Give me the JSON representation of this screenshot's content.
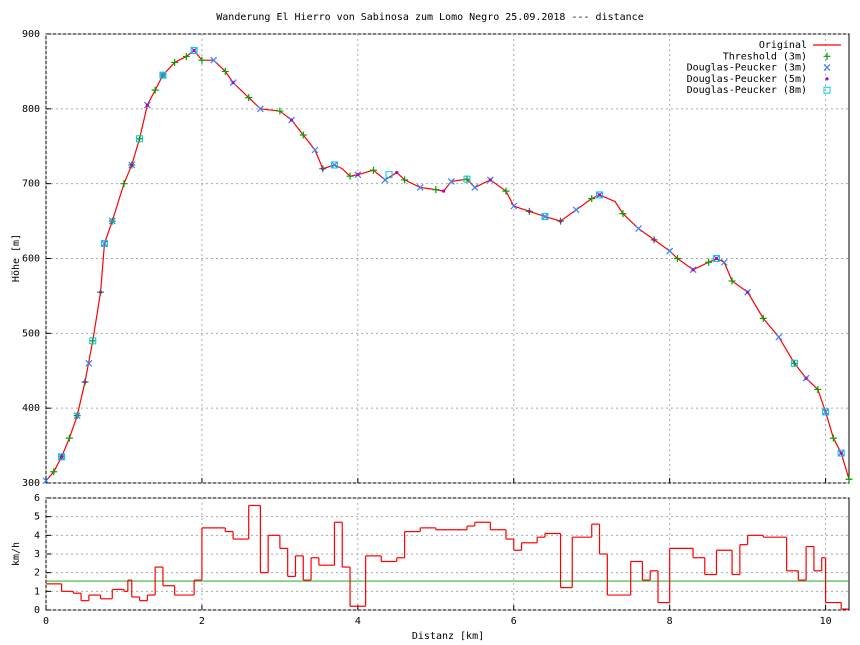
{
  "chart_data": [
    {
      "type": "line",
      "title": "Wanderung El Hierro von Sabinosa zum Lomo Negro 25.09.2018 --- distance",
      "y_label": "Höhe [m]",
      "xlim": [
        0,
        10.3
      ],
      "xticks": [
        0,
        2,
        4,
        6,
        8,
        10
      ],
      "ylim": [
        300,
        900
      ],
      "yticks": [
        300,
        400,
        500,
        600,
        700,
        800,
        900
      ],
      "grid": true,
      "legend": "top-right",
      "series": [
        {
          "name": "Original",
          "color": "#ff0000",
          "style": "line",
          "x": [
            0,
            0.1,
            0.2,
            0.3,
            0.4,
            0.5,
            0.6,
            0.7,
            0.75,
            0.85,
            1.0,
            1.1,
            1.2,
            1.3,
            1.4,
            1.5,
            1.65,
            1.8,
            1.9,
            2.0,
            2.15,
            2.3,
            2.4,
            2.6,
            2.75,
            3.0,
            3.15,
            3.3,
            3.45,
            3.55,
            3.7,
            3.8,
            3.9,
            4.0,
            4.2,
            4.35,
            4.5,
            4.6,
            4.8,
            5.0,
            5.1,
            5.2,
            5.4,
            5.5,
            5.7,
            5.9,
            6.0,
            6.2,
            6.4,
            6.6,
            6.8,
            7.0,
            7.1,
            7.3,
            7.4,
            7.6,
            7.8,
            8.0,
            8.1,
            8.3,
            8.5,
            8.6,
            8.7,
            8.8,
            9.0,
            9.2,
            9.4,
            9.6,
            9.75,
            9.9,
            10.0,
            10.1,
            10.2,
            10.3
          ],
          "values": [
            303,
            315,
            335,
            360,
            390,
            435,
            490,
            555,
            620,
            650,
            700,
            725,
            760,
            805,
            825,
            845,
            862,
            870,
            878,
            865,
            865,
            850,
            835,
            815,
            800,
            797,
            785,
            765,
            745,
            720,
            725,
            720,
            710,
            712,
            718,
            705,
            715,
            705,
            695,
            692,
            690,
            703,
            706,
            695,
            705,
            690,
            670,
            663,
            656,
            650,
            665,
            680,
            685,
            676,
            660,
            640,
            625,
            610,
            600,
            585,
            595,
            600,
            595,
            570,
            555,
            520,
            495,
            460,
            440,
            425,
            395,
            360,
            340,
            305
          ]
        },
        {
          "name": "Threshold (3m)",
          "color": "#00a000",
          "style": "marker",
          "marker": "plus",
          "x": [
            0.1,
            0.2,
            0.3,
            0.4,
            0.5,
            0.6,
            0.7,
            0.85,
            1.0,
            1.1,
            1.2,
            1.4,
            1.5,
            1.65,
            1.8,
            2.0,
            2.3,
            2.6,
            3.0,
            3.3,
            3.55,
            3.9,
            4.2,
            4.6,
            5.0,
            5.4,
            5.9,
            6.2,
            6.6,
            7.0,
            7.4,
            7.8,
            8.1,
            8.5,
            8.8,
            9.2,
            9.6,
            9.9,
            10.1,
            10.3
          ],
          "values": [
            315,
            335,
            360,
            390,
            435,
            490,
            555,
            650,
            700,
            725,
            760,
            825,
            845,
            862,
            870,
            865,
            850,
            815,
            797,
            765,
            720,
            710,
            718,
            705,
            692,
            706,
            690,
            663,
            650,
            680,
            660,
            625,
            600,
            595,
            570,
            520,
            460,
            425,
            360,
            305
          ]
        },
        {
          "name": "Douglas-Peucker (3m)",
          "color": "#3a7fff",
          "style": "marker",
          "marker": "cross",
          "x": [
            0,
            0.2,
            0.4,
            0.55,
            0.75,
            0.85,
            1.1,
            1.3,
            1.5,
            1.9,
            2.15,
            2.4,
            2.75,
            3.15,
            3.45,
            3.7,
            4.0,
            4.35,
            4.8,
            5.2,
            5.5,
            5.7,
            6.0,
            6.4,
            6.8,
            7.1,
            7.6,
            8.0,
            8.3,
            8.6,
            8.7,
            9.0,
            9.4,
            9.75,
            10.0,
            10.2
          ],
          "values": [
            303,
            335,
            390,
            460,
            620,
            650,
            725,
            805,
            845,
            878,
            865,
            835,
            800,
            785,
            745,
            725,
            712,
            705,
            695,
            703,
            695,
            705,
            670,
            656,
            665,
            685,
            640,
            610,
            585,
            600,
            595,
            555,
            495,
            440,
            395,
            340
          ]
        },
        {
          "name": "Douglas-Peucker (5m)",
          "color": "#c000c0",
          "style": "marker",
          "marker": "dot",
          "x": [
            0.2,
            0.5,
            0.7,
            1.1,
            1.3,
            1.9,
            2.4,
            3.15,
            3.55,
            4.0,
            4.5,
            5.1,
            5.7,
            6.2,
            6.6,
            7.1,
            7.8,
            8.3,
            8.6,
            9.0,
            9.75,
            10.2
          ],
          "values": [
            335,
            435,
            555,
            725,
            805,
            878,
            835,
            785,
            720,
            712,
            715,
            690,
            705,
            663,
            650,
            685,
            625,
            585,
            600,
            555,
            440,
            340
          ]
        },
        {
          "name": "Douglas-Peucker (8m)",
          "color": "#00c8e8",
          "style": "marker",
          "marker": "square",
          "x": [
            0.2,
            0.6,
            0.75,
            1.2,
            1.5,
            1.9,
            3.7,
            4.4,
            5.4,
            6.4,
            7.1,
            8.6,
            9.6,
            10.0,
            10.2
          ],
          "values": [
            335,
            490,
            620,
            760,
            845,
            878,
            725,
            712,
            706,
            656,
            685,
            600,
            460,
            395,
            340
          ]
        }
      ]
    },
    {
      "type": "step",
      "x_label": "Distanz [km]",
      "y_label": "km/h",
      "xlim": [
        0,
        10.3
      ],
      "xticks": [
        0,
        2,
        4,
        6,
        8,
        10
      ],
      "ylim": [
        0,
        6
      ],
      "yticks": [
        0,
        1,
        2,
        3,
        4,
        5,
        6
      ],
      "grid": true,
      "hline": {
        "value": 1.55,
        "color": "#00a000"
      },
      "series": [
        {
          "color": "#ff0000",
          "x": [
            0,
            0.2,
            0.35,
            0.45,
            0.55,
            0.7,
            0.85,
            1.0,
            1.05,
            1.1,
            1.2,
            1.3,
            1.4,
            1.5,
            1.65,
            1.9,
            2.0,
            2.3,
            2.4,
            2.6,
            2.75,
            2.85,
            3.0,
            3.1,
            3.2,
            3.3,
            3.4,
            3.5,
            3.7,
            3.8,
            3.9,
            4.1,
            4.3,
            4.5,
            4.6,
            4.8,
            5.0,
            5.4,
            5.5,
            5.7,
            5.9,
            6.0,
            6.1,
            6.3,
            6.4,
            6.6,
            6.75,
            7.0,
            7.1,
            7.2,
            7.5,
            7.65,
            7.75,
            7.85,
            8.0,
            8.3,
            8.45,
            8.6,
            8.8,
            8.9,
            9.0,
            9.2,
            9.5,
            9.65,
            9.75,
            9.85,
            9.95,
            10.0,
            10.2
          ],
          "values": [
            1.4,
            1.0,
            0.9,
            0.5,
            0.8,
            0.6,
            1.1,
            1.0,
            1.6,
            0.7,
            0.5,
            0.8,
            2.3,
            1.3,
            0.8,
            1.6,
            4.4,
            4.2,
            3.8,
            5.6,
            2.0,
            4.0,
            3.3,
            1.8,
            2.9,
            1.6,
            2.8,
            2.4,
            4.7,
            2.3,
            0.2,
            2.9,
            2.6,
            2.8,
            4.2,
            4.4,
            4.3,
            4.5,
            4.7,
            4.3,
            3.8,
            3.2,
            3.6,
            3.9,
            4.1,
            1.2,
            3.9,
            4.6,
            3.0,
            0.8,
            2.6,
            1.6,
            2.1,
            0.4,
            3.3,
            2.8,
            1.9,
            3.2,
            1.9,
            3.5,
            4.0,
            3.9,
            2.1,
            1.6,
            3.4,
            2.1,
            2.8,
            0.4,
            0.05
          ]
        }
      ]
    }
  ]
}
